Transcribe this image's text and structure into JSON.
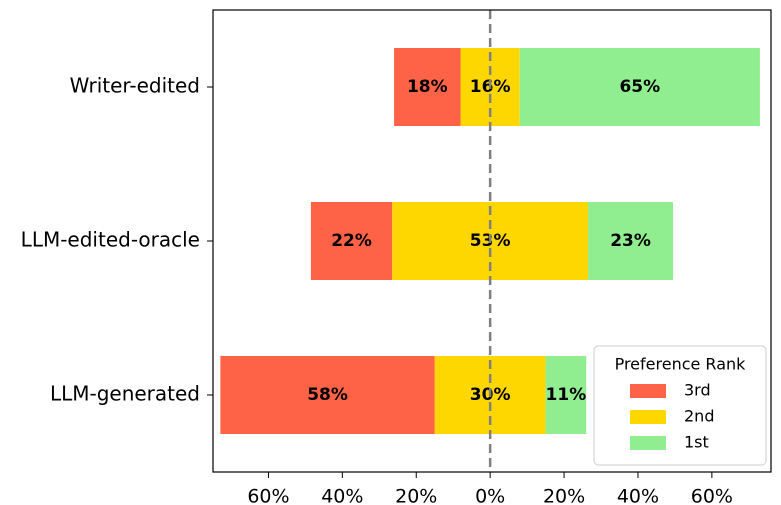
{
  "chart_data": {
    "type": "diverging_bar",
    "categories": [
      "Writer-edited",
      "LLM-edited-oracle",
      "LLM-generated"
    ],
    "series": [
      {
        "name": "3rd",
        "color": "#ff6347",
        "values": [
          18,
          22,
          58
        ],
        "value_labels": [
          "18%",
          "22%",
          "58%"
        ]
      },
      {
        "name": "2nd",
        "color": "#ffd700",
        "values": [
          16,
          53,
          30
        ],
        "value_labels": [
          "16%",
          "53%",
          "30%"
        ]
      },
      {
        "name": "1st",
        "color": "#90ee90",
        "values": [
          65,
          23,
          11
        ],
        "value_labels": [
          "65%",
          "23%",
          "11%"
        ]
      }
    ],
    "xlim": [
      -75,
      76
    ],
    "xticks": [
      {
        "value": -60,
        "label": "60%"
      },
      {
        "value": -40,
        "label": "40%"
      },
      {
        "value": -20,
        "label": "20%"
      },
      {
        "value": 0,
        "label": "0%"
      },
      {
        "value": 20,
        "label": "20%"
      },
      {
        "value": 40,
        "label": "40%"
      },
      {
        "value": 60,
        "label": "60%"
      }
    ],
    "legend_title": "Preference Rank",
    "legend_position": "lower right"
  }
}
